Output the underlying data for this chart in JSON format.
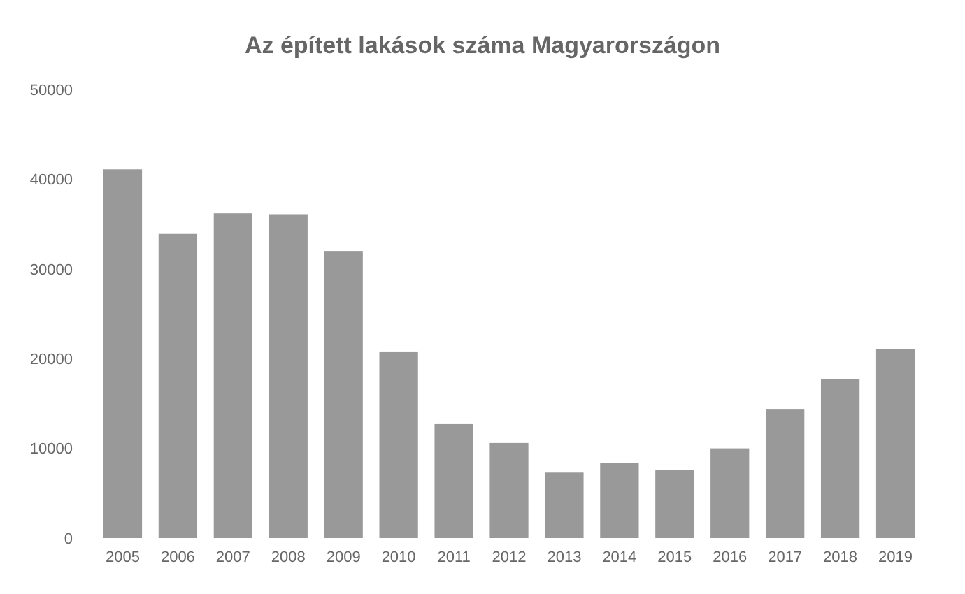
{
  "chart_data": {
    "type": "bar",
    "title": "Az épített lakások száma Magyarországon",
    "categories": [
      "2005",
      "2006",
      "2007",
      "2008",
      "2009",
      "2010",
      "2011",
      "2012",
      "2013",
      "2014",
      "2015",
      "2016",
      "2017",
      "2018",
      "2019"
    ],
    "values": [
      41100,
      33900,
      36200,
      36100,
      32000,
      20800,
      12700,
      10600,
      7300,
      8400,
      7600,
      10000,
      14400,
      17700,
      21100
    ],
    "color": "#999999",
    "ylim": [
      0,
      50000
    ],
    "yticks": [
      0,
      10000,
      20000,
      30000,
      40000,
      50000
    ],
    "grid": false
  }
}
